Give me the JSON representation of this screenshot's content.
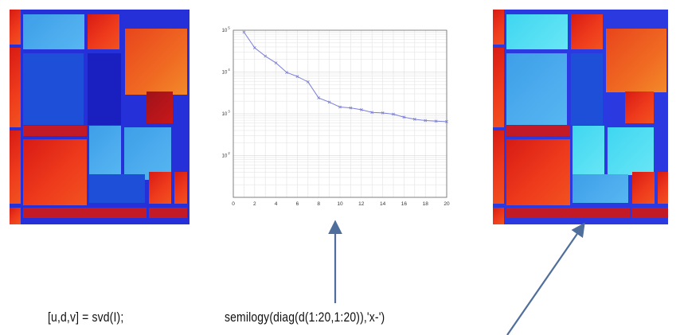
{
  "code_left": "[u,d,v] = svd(I);",
  "code_middle": "semilogy(diag(d(1:20,1:20)),'x-')",
  "colors": {
    "line": "#7b7fd8",
    "arrow": "#4f6e9c",
    "red": "#e3281a",
    "cyan": "#5ee0f4",
    "blue": "#2a36d8"
  },
  "chart_data": {
    "type": "line",
    "x": [
      1,
      2,
      3,
      4,
      5,
      6,
      7,
      8,
      9,
      10,
      11,
      12,
      13,
      14,
      15,
      16,
      17,
      18,
      19,
      20
    ],
    "series": [
      {
        "values": [
          90000,
          38000,
          24000,
          16500,
          9800,
          7800,
          5800,
          2400,
          1900,
          1450,
          1380,
          1250,
          1080,
          1050,
          980,
          830,
          740,
          690,
          665,
          650
        ]
      }
    ],
    "xlim": [
      0,
      20
    ],
    "ylim": [
      10,
      100000
    ],
    "yscale": "log",
    "xticks": [
      "0",
      "2",
      "4",
      "6",
      "8",
      "10",
      "12",
      "14",
      "16",
      "18",
      "20"
    ],
    "yticks": [
      {
        "value": 100000,
        "base": "10",
        "exp": "5"
      },
      {
        "value": 10000,
        "base": "10",
        "exp": "4"
      },
      {
        "value": 1000,
        "base": "10",
        "exp": "3"
      },
      {
        "value": 100,
        "base": "10",
        "exp": "2"
      }
    ],
    "grid": true,
    "marker": "x"
  }
}
